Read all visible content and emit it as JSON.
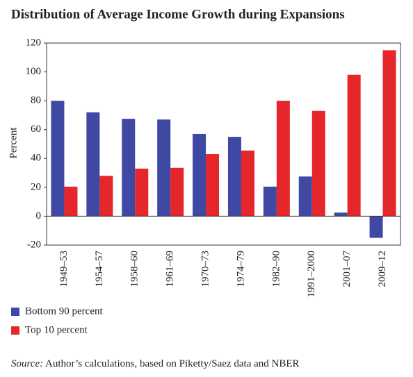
{
  "chart_data": {
    "type": "bar",
    "title": "Distribution of Average Income Growth during Expansions",
    "y_label": "Percent",
    "categories": [
      "1949–53",
      "1954–57",
      "1958–60",
      "1961–69",
      "1970–73",
      "1974–79",
      "1982–90",
      "1991–2000",
      "2001–07",
      "2009–12"
    ],
    "series": [
      {
        "name": "Bottom 90 percent",
        "color": "#3f48a3",
        "values": [
          80,
          72,
          67.5,
          67,
          57,
          55,
          20.5,
          27.5,
          2.5,
          -15
        ]
      },
      {
        "name": "Top 10 percent",
        "color": "#e5262b",
        "values": [
          20.5,
          28,
          33,
          33.5,
          43,
          45.5,
          80,
          73,
          98,
          115
        ]
      }
    ],
    "ylim": [
      -20,
      120
    ],
    "yticks": [
      -20,
      0,
      20,
      40,
      60,
      80,
      100,
      120
    ],
    "source_label": "Source:",
    "source_text": "Author’s calculations, based on Piketty/Saez data and NBER"
  }
}
